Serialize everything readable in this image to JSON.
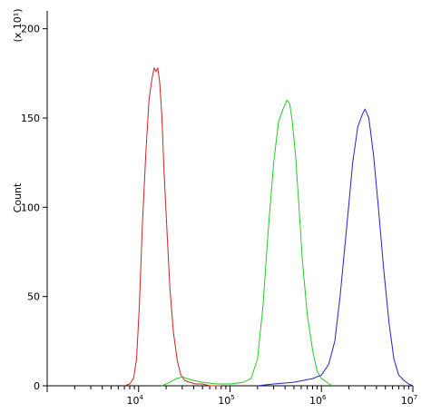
{
  "chart_data": {
    "type": "line",
    "title": "",
    "ylabel": "Count",
    "xlabel": "",
    "y_multiplier_label": "(x 10¹)",
    "x_scale": "log",
    "xlim": [
      1000,
      10000000
    ],
    "ylim": [
      0,
      210
    ],
    "y_ticks": [
      0,
      50,
      100,
      150,
      200
    ],
    "x_tick_labels": [
      {
        "base": "10",
        "exp": "4",
        "value": 10000
      },
      {
        "base": "10",
        "exp": "5",
        "value": 100000
      },
      {
        "base": "10",
        "exp": "6",
        "value": 1000000
      },
      {
        "base": "10",
        "exp": "7",
        "value": 10000000
      }
    ],
    "grid": false,
    "series": [
      {
        "color": "#cc2222",
        "x": [
          7000,
          8000,
          8800,
          9500,
          10200,
          11000,
          12000,
          13000,
          14000,
          14800,
          15500,
          16200,
          17000,
          18000,
          19000,
          20500,
          22000,
          24000,
          26500,
          29000,
          32000,
          36000,
          42000,
          50000,
          60000,
          80000
        ],
        "y": [
          0,
          1,
          4,
          15,
          45,
          90,
          130,
          160,
          172,
          178,
          176,
          178,
          170,
          150,
          120,
          85,
          55,
          30,
          14,
          6,
          3,
          2,
          1,
          1,
          0,
          0
        ]
      },
      {
        "color": "#22cc22",
        "x": [
          18000,
          22000,
          26000,
          30000,
          34000,
          40000,
          50000,
          70000,
          100000,
          140000,
          170000,
          200000,
          230000,
          260000,
          300000,
          340000,
          380000,
          420000,
          450000,
          480000,
          520000,
          560000,
          620000,
          700000,
          800000,
          900000,
          1000000,
          1150000,
          1300000
        ],
        "y": [
          0,
          2,
          4,
          5,
          4,
          3,
          2,
          1,
          1,
          2,
          4,
          15,
          45,
          85,
          125,
          148,
          155,
          160,
          158,
          148,
          130,
          105,
          70,
          40,
          20,
          8,
          4,
          2,
          0
        ]
      },
      {
        "color": "#2222cc",
        "x": [
          200000,
          300000,
          500000,
          800000,
          1000000,
          1200000,
          1400000,
          1600000,
          1900000,
          2200000,
          2500000,
          2800000,
          3000000,
          3300000,
          3700000,
          4200000,
          4800000,
          5500000,
          6200000,
          7000000,
          8000000,
          9000000,
          10000000
        ],
        "y": [
          0,
          1,
          2,
          4,
          6,
          12,
          25,
          50,
          90,
          125,
          145,
          152,
          155,
          150,
          130,
          100,
          65,
          35,
          15,
          6,
          3,
          1,
          0
        ]
      }
    ]
  }
}
